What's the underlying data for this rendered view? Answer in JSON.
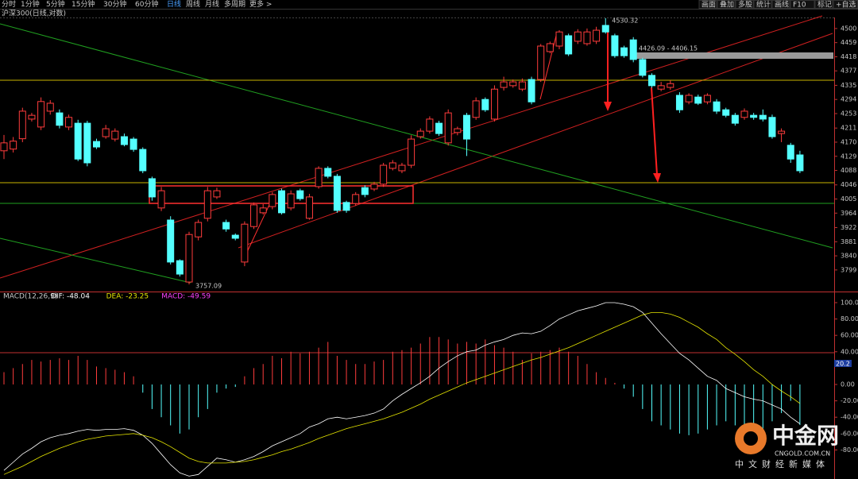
{
  "toolbar": {
    "periods": [
      "分时",
      "1分钟",
      "5分钟",
      "15分钟",
      "30分钟",
      "60分钟",
      "日线",
      "周线",
      "月线",
      "多周期",
      "更多 >"
    ],
    "actions": [
      "画面",
      "叠加",
      "多股",
      "统计",
      "画线",
      "F10",
      "标记",
      "+自选",
      "返回"
    ]
  },
  "chart_data": [
    {
      "type": "candlestick",
      "title": "沪深300(日线,对数)",
      "up_color": "#ff3c3c",
      "down_color": "#54ffff",
      "open": [
        4145,
        4150,
        4180,
        4237,
        4214,
        4260,
        4255,
        4214,
        4225,
        4225,
        4172,
        4186,
        4179,
        4186,
        4179,
        4149,
        4064,
        3979,
        3944,
        3826,
        3764,
        3895,
        3949,
        4011,
        3937,
        3900,
        3822,
        3925,
        3965,
        3983,
        4029,
        3979,
        4029,
        3949,
        4041,
        4094,
        4071,
        3995,
        3992,
        4038,
        4034,
        4048,
        4094,
        4087,
        4103,
        4186,
        4202,
        4225,
        4168,
        4198,
        4248,
        4242,
        4294,
        4237,
        4329,
        4334,
        4324,
        4352,
        4352,
        4433,
        4449,
        4479,
        4463,
        4456,
        4463,
        4509,
        4479,
        4444,
        4467,
        4410,
        4364,
        4324,
        4329,
        4306,
        4287,
        4301,
        4287,
        4287,
        4264,
        4248,
        4242,
        4248,
        4248,
        4242,
        4195,
        4161,
        4133
      ],
      "high": [
        4191,
        4185,
        4270,
        4255,
        4300,
        4292,
        4265,
        4250,
        4235,
        4232,
        4180,
        4220,
        4210,
        4195,
        4185,
        4155,
        4070,
        4040,
        3955,
        3830,
        3910,
        3945,
        4040,
        4038,
        3945,
        3905,
        3940,
        3995,
        3990,
        4025,
        4035,
        4030,
        4035,
        4020,
        4100,
        4100,
        4078,
        4000,
        4025,
        4045,
        4055,
        4110,
        4118,
        4110,
        4190,
        4210,
        4245,
        4232,
        4265,
        4215,
        4255,
        4300,
        4300,
        4335,
        4360,
        4352,
        4355,
        4360,
        4455,
        4462,
        4495,
        4485,
        4498,
        4500,
        4505,
        4530,
        4485,
        4450,
        4475,
        4415,
        4370,
        4345,
        4350,
        4315,
        4312,
        4308,
        4312,
        4295,
        4270,
        4255,
        4268,
        4255,
        4265,
        4250,
        4210,
        4168,
        4145
      ],
      "low": [
        4121,
        4140,
        4170,
        4230,
        4205,
        4250,
        4210,
        4205,
        4115,
        4100,
        4150,
        4180,
        4172,
        4158,
        4142,
        4080,
        4000,
        3970,
        3815,
        3780,
        3757,
        3885,
        3940,
        4005,
        3910,
        3885,
        3810,
        3918,
        3960,
        3975,
        3960,
        3972,
        4000,
        3945,
        4035,
        4065,
        3965,
        3965,
        3985,
        4010,
        4028,
        4040,
        4088,
        4080,
        4095,
        4180,
        4195,
        4188,
        4160,
        4190,
        4130,
        4235,
        4258,
        4230,
        4320,
        4328,
        4318,
        4280,
        4345,
        4428,
        4440,
        4420,
        4455,
        4450,
        4455,
        4485,
        4415,
        4415,
        4402,
        4358,
        4328,
        4318,
        4322,
        4255,
        4280,
        4278,
        4280,
        4252,
        4242,
        4218,
        4235,
        4235,
        4230,
        4180,
        4170,
        4110,
        4080
      ],
      "close": [
        4168,
        4173,
        4260,
        4248,
        4288,
        4283,
        4219,
        4242,
        4121,
        4110,
        4156,
        4209,
        4202,
        4163,
        4149,
        4087,
        4011,
        4029,
        3822,
        3787,
        3902,
        3937,
        4029,
        4029,
        3918,
        3891,
        3932,
        3988,
        3979,
        4018,
        3965,
        4020,
        4006,
        4011,
        4094,
        4071,
        3972,
        3972,
        4018,
        4018,
        4048,
        4103,
        4110,
        4103,
        4179,
        4202,
        4237,
        4195,
        4255,
        4209,
        4179,
        4290,
        4264,
        4324,
        4345,
        4345,
        4345,
        4287,
        4449,
        4456,
        4490,
        4426,
        4490,
        4490,
        4495,
        4490,
        4421,
        4421,
        4410,
        4364,
        4334,
        4334,
        4340,
        4264,
        4306,
        4283,
        4306,
        4260,
        4248,
        4225,
        4260,
        4242,
        4237,
        4186,
        4202,
        4121,
        4087
      ],
      "ylim": [
        3741,
        4532
      ],
      "yticks": [
        4500,
        4459,
        4418,
        4377,
        4335,
        4294,
        4253,
        4211,
        4170,
        4129,
        4088,
        4046,
        4005,
        3964,
        3922,
        3881,
        3840,
        3799
      ],
      "annotations": [
        "4530.32",
        "3757.09",
        "4426.09 - 4406.15"
      ]
    },
    {
      "type": "macd",
      "title": "MACD(12,26,9)",
      "up_color": "#ff3c3c",
      "down_color": "#54ffff",
      "cursor_label": "20.2",
      "ylim": [
        -112.6,
        112.6
      ],
      "yticks": [
        {
          "value": 100,
          "label": "100.00"
        },
        {
          "value": 80,
          "label": "80.00"
        },
        {
          "value": 60,
          "label": "60.00"
        },
        {
          "value": 40,
          "label": "40.00"
        },
        {
          "value": 0,
          "label": "0.00"
        },
        {
          "value": -20,
          "label": "-20.00"
        },
        {
          "value": -40,
          "label": "-40.00"
        },
        {
          "value": -60,
          "label": "-60.00"
        },
        {
          "value": -80,
          "label": "-80.00"
        }
      ],
      "series": [
        {
          "name": "DIF: -48.04",
          "color": "#ffffff",
          "values": [
            -105,
            -95,
            -85,
            -78,
            -70,
            -65,
            -62,
            -60,
            -57,
            -55,
            -56,
            -55,
            -55,
            -54,
            -56,
            -62,
            -72,
            -85,
            -98,
            -108,
            -112,
            -110,
            -100,
            -90,
            -92,
            -95,
            -92,
            -88,
            -82,
            -75,
            -70,
            -65,
            -60,
            -52,
            -48,
            -42,
            -40,
            -42,
            -40,
            -38,
            -35,
            -30,
            -20,
            -12,
            -5,
            2,
            10,
            20,
            28,
            35,
            40,
            42,
            48,
            52,
            55,
            60,
            63,
            62,
            65,
            72,
            80,
            85,
            90,
            93,
            96,
            100,
            100,
            98,
            95,
            88,
            75,
            62,
            50,
            38,
            30,
            20,
            10,
            5,
            -5,
            -10,
            -15,
            -18,
            -20,
            -25,
            -30,
            -40,
            -48.04
          ]
        },
        {
          "name": "DEA: -23.25",
          "color": "#e6e600",
          "values": [
            -110,
            -105,
            -100,
            -94,
            -88,
            -83,
            -78,
            -74,
            -70,
            -67,
            -65,
            -63,
            -62,
            -61,
            -60,
            -62,
            -65,
            -70,
            -76,
            -83,
            -90,
            -94,
            -96,
            -96,
            -96,
            -95,
            -94,
            -92,
            -89,
            -86,
            -82,
            -79,
            -75,
            -71,
            -66,
            -62,
            -58,
            -54,
            -51,
            -48,
            -45,
            -42,
            -38,
            -34,
            -29,
            -24,
            -18,
            -13,
            -8,
            -3,
            2,
            6,
            10,
            14,
            18,
            22,
            26,
            30,
            33,
            37,
            41,
            45,
            50,
            55,
            60,
            65,
            70,
            75,
            80,
            85,
            88,
            88,
            86,
            82,
            76,
            70,
            62,
            55,
            45,
            37,
            28,
            18,
            10,
            0,
            -8,
            -15,
            -23.25
          ]
        },
        {
          "name": "MACD: -49.59",
          "color": "#ff40ff",
          "values": [
            15,
            20,
            25,
            30,
            28,
            30,
            32,
            30,
            35,
            30,
            22,
            20,
            18,
            15,
            10,
            -10,
            -30,
            -40,
            -50,
            -60,
            -55,
            -40,
            -30,
            -10,
            -5,
            -3,
            10,
            20,
            25,
            35,
            32,
            40,
            38,
            40,
            45,
            52,
            35,
            30,
            25,
            25,
            28,
            30,
            40,
            42,
            45,
            50,
            58,
            58,
            55,
            50,
            52,
            50,
            55,
            48,
            45,
            40,
            30,
            38,
            40,
            42,
            45,
            40,
            35,
            25,
            15,
            8,
            2,
            -5,
            -15,
            -30,
            -45,
            -50,
            -55,
            -60,
            -62,
            -60,
            -55,
            -50,
            -45,
            -50,
            -55,
            -60,
            -55,
            -45,
            -35,
            -20,
            -49.59
          ]
        }
      ]
    }
  ],
  "watermark": {
    "brand": "中金网",
    "site": "CNGOLD.COM.CN",
    "slogan": "中文财经新媒体"
  }
}
